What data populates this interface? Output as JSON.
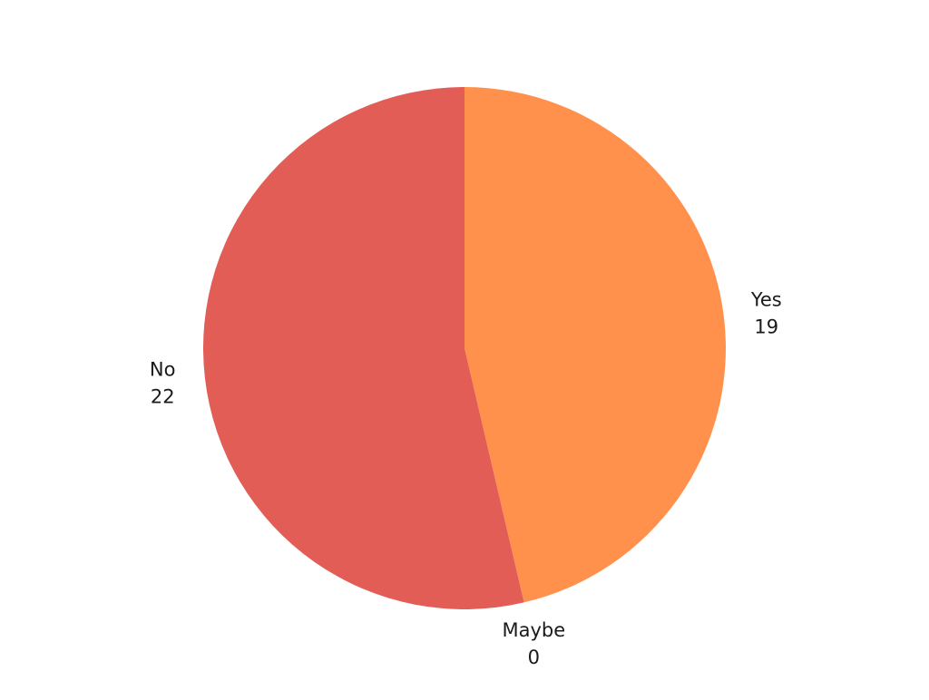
{
  "chart_data": {
    "type": "pie",
    "categories": [
      "Yes",
      "Maybe",
      "No"
    ],
    "values": [
      19,
      0,
      22
    ],
    "colors": [
      "#FF914D",
      "#FF914D",
      "#E35D57"
    ],
    "labels_shown": [
      "category",
      "value"
    ],
    "start_angle": "12 o'clock",
    "direction": "clockwise"
  }
}
